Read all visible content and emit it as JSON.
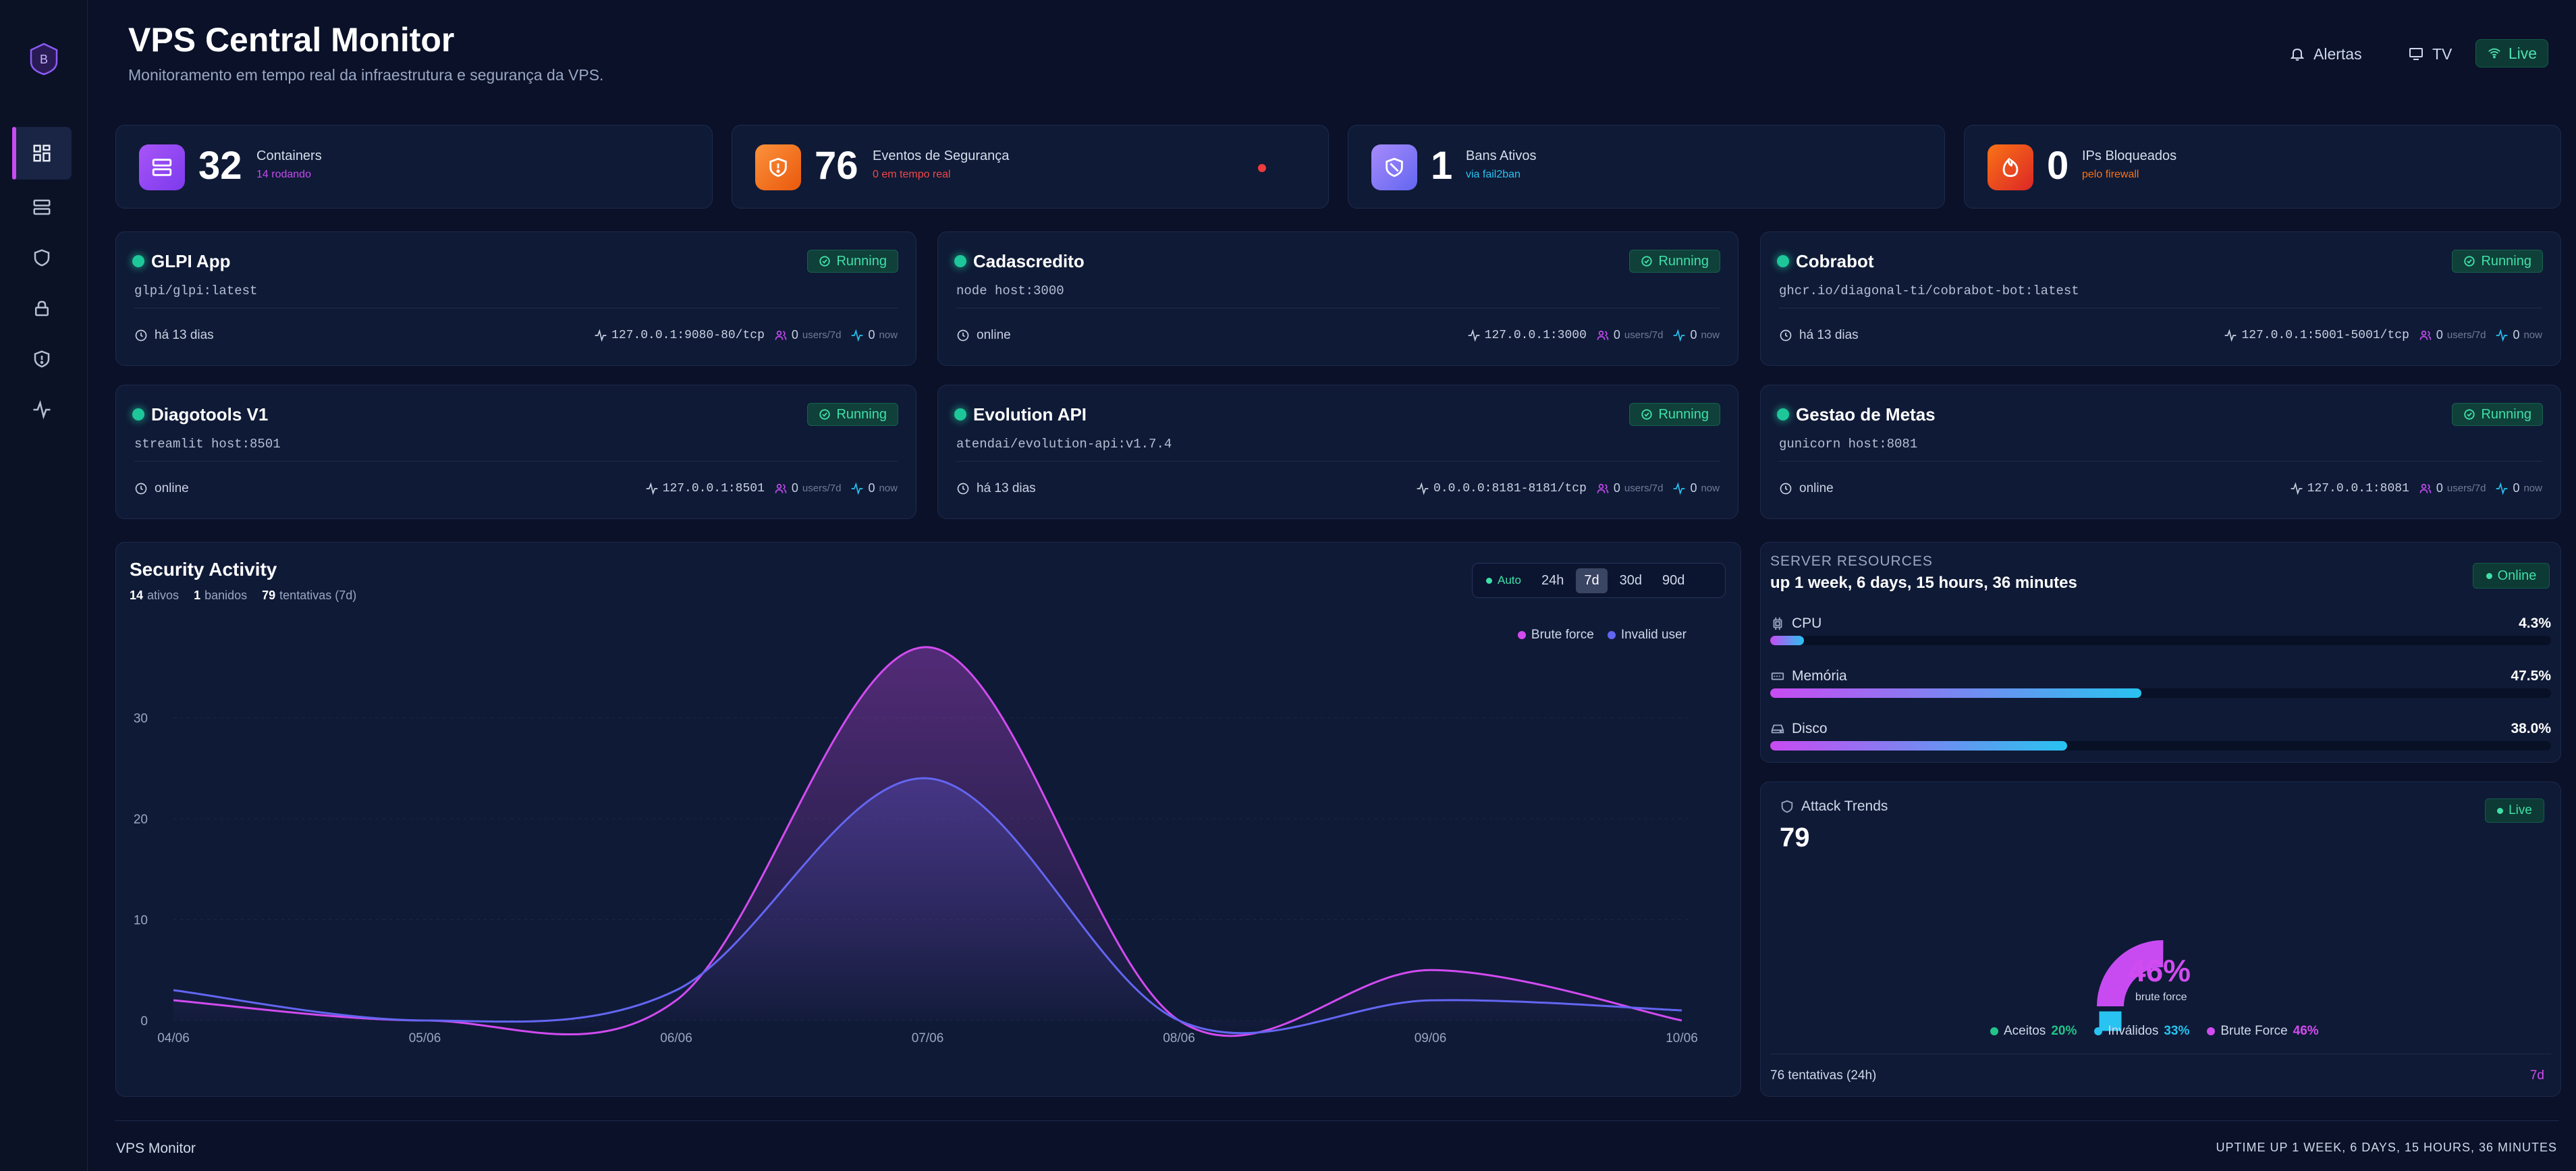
{
  "header": {
    "title": "VPS Central Monitor",
    "subtitle": "Monitoramento em tempo real da infraestrutura e segurança da VPS.",
    "alerts_label": "Alertas",
    "tv_label": "TV",
    "live_label": "Live"
  },
  "sidebar": {
    "logo_letter": "B",
    "items": [
      "dashboard-icon",
      "server-icon",
      "shield-icon",
      "lock-icon",
      "shield-alert-icon",
      "activity-icon"
    ]
  },
  "stats": [
    {
      "value": "32",
      "label": "Containers",
      "sub": "14 rodando",
      "color": "#a855f7"
    },
    {
      "value": "76",
      "label": "Eventos de Segurança",
      "sub": "0 em tempo real",
      "color": "#f97316"
    },
    {
      "value": "1",
      "label": "Bans Ativos",
      "sub": "via fail2ban",
      "color": "#7c6bf0"
    },
    {
      "value": "0",
      "label": "IPs Bloqueados",
      "sub": "pelo firewall",
      "color": "#ef5a3a"
    }
  ],
  "containers": [
    {
      "name": "GLPI App",
      "status": "Running",
      "image": "glpi/glpi:latest",
      "uptime": "há 13 dias",
      "port": "127.0.0.1:9080-80/tcp",
      "users": "0",
      "users_unit": "users/7d",
      "now": "0",
      "now_unit": "now"
    },
    {
      "name": "Cadascredito",
      "status": "Running",
      "image": "node host:3000",
      "uptime": "online",
      "port": "127.0.0.1:3000",
      "users": "0",
      "users_unit": "users/7d",
      "now": "0",
      "now_unit": "now"
    },
    {
      "name": "Cobrabot",
      "status": "Running",
      "image": "ghcr.io/diagonal-ti/cobrabot-bot:latest",
      "uptime": "há 13 dias",
      "port": "127.0.0.1:5001-5001/tcp",
      "users": "0",
      "users_unit": "users/7d",
      "now": "0",
      "now_unit": "now"
    },
    {
      "name": "Diagotools V1",
      "status": "Running",
      "image": "streamlit host:8501",
      "uptime": "online",
      "port": "127.0.0.1:8501",
      "users": "0",
      "users_unit": "users/7d",
      "now": "0",
      "now_unit": "now"
    },
    {
      "name": "Evolution API",
      "status": "Running",
      "image": "atendai/evolution-api:v1.7.4",
      "uptime": "há 13 dias",
      "port": "0.0.0.0:8181-8181/tcp",
      "users": "0",
      "users_unit": "users/7d",
      "now": "0",
      "now_unit": "now"
    },
    {
      "name": "Gestao de Metas",
      "status": "Running",
      "image": "gunicorn host:8081",
      "uptime": "online",
      "port": "127.0.0.1:8081",
      "users": "0",
      "users_unit": "users/7d",
      "now": "0",
      "now_unit": "now"
    }
  ],
  "security": {
    "title": "Security Activity",
    "ativos_n": "14",
    "ativos_l": "ativos",
    "banidos_n": "1",
    "banidos_l": "banidos",
    "tent_n": "79",
    "tent_l": "tentativas (7d)",
    "auto_label": "Auto",
    "ranges": [
      "24h",
      "7d",
      "30d",
      "90d"
    ],
    "selected_range": "7d"
  },
  "chart_data": {
    "type": "area",
    "x": [
      "04/06",
      "05/06",
      "06/06",
      "07/06",
      "08/06",
      "09/06",
      "10/06"
    ],
    "ylim": [
      0,
      40
    ],
    "yticks": [
      0,
      10,
      20,
      30,
      40
    ],
    "series": [
      {
        "name": "Brute force",
        "color": "#d24bf0",
        "values": [
          2,
          0,
          2,
          37,
          0,
          5,
          0
        ]
      },
      {
        "name": "Invalid user",
        "color": "#6366f1",
        "values": [
          3,
          0,
          3,
          24,
          0,
          2,
          1
        ]
      }
    ]
  },
  "resources": {
    "title": "SERVER RESOURCES",
    "uptime": "up 1 week, 6 days, 15 hours, 36 minutes",
    "online_label": "Online",
    "items": [
      {
        "label": "CPU",
        "value": "4.3%",
        "pct": 4.3
      },
      {
        "label": "Memória",
        "value": "47.5%",
        "pct": 47.5
      },
      {
        "label": "Disco",
        "value": "38.0%",
        "pct": 38.0
      }
    ]
  },
  "attack": {
    "title": "Attack Trends",
    "total": "79",
    "live_label": "Live",
    "big_pct": "46%",
    "big_label": "brute force",
    "legend": [
      {
        "label": "Aceitos",
        "pct": "20%",
        "color": "#22c48a",
        "value": 20
      },
      {
        "label": "Inválidos",
        "pct": "33%",
        "color": "#28c3f0",
        "value": 33
      },
      {
        "label": "Brute Force",
        "pct": "46%",
        "color": "#d24bf0",
        "value": 46
      }
    ],
    "footer_left": "76 tentativas (24h)",
    "footer_right": "7d"
  },
  "footer": {
    "left": "VPS Monitor",
    "right": "UPTIME UP 1 WEEK, 6 DAYS, 15 HOURS, 36 MINUTES"
  }
}
